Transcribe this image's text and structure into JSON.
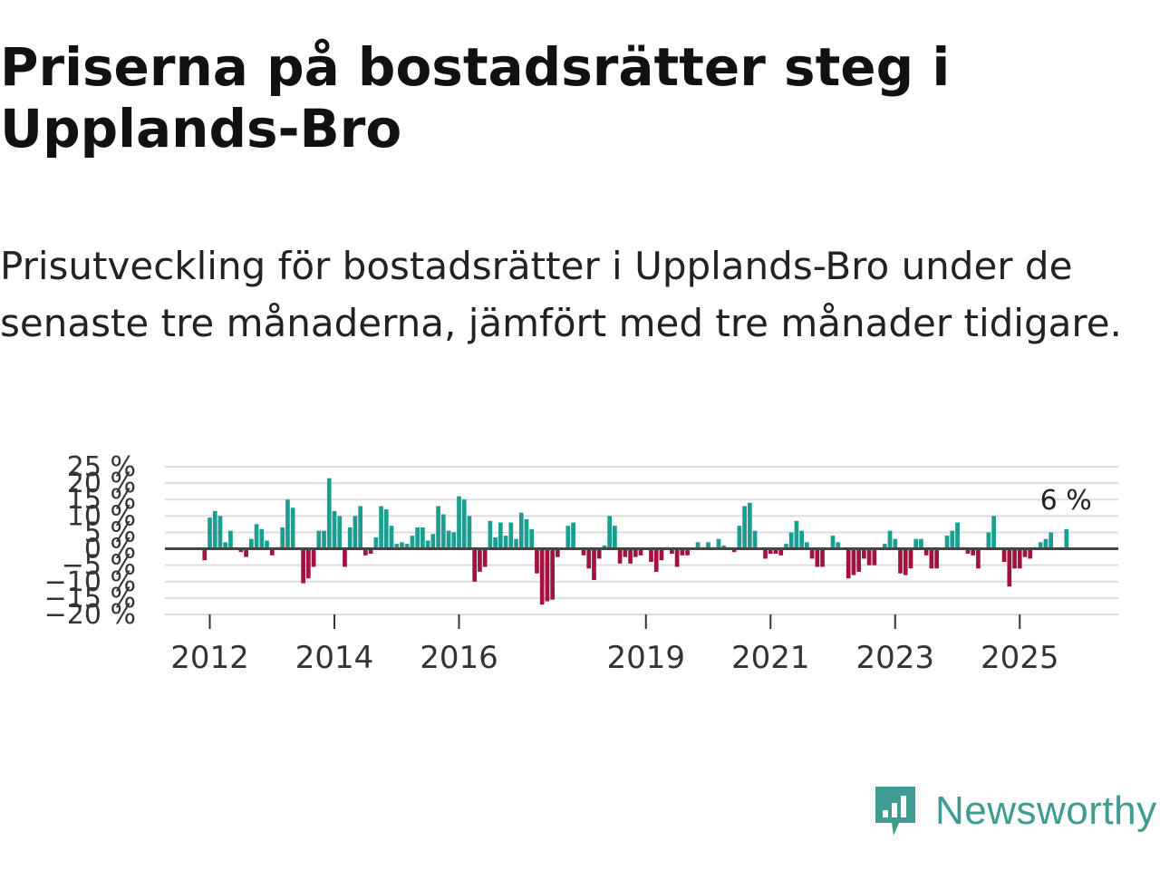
{
  "title": "Priserna på bostadsrätter steg i Upplands-Bro",
  "subtitle": "Prisutveckling för bostadsrätter i Upplands-Bro under de senaste tre månaderna, jämfört med tre månader tidigare.",
  "brand": {
    "name": "Newsworthy",
    "icon": "newsworthy-logo-icon",
    "color": "#3f9c92"
  },
  "colors": {
    "positive": "#1a9e8f",
    "negative": "#a3123f",
    "grid": "#dddddd",
    "zero_line": "#444444"
  },
  "chart_data": {
    "type": "bar",
    "title": "Priserna på bostadsrätter steg i Upplands-Bro",
    "xlabel": "",
    "ylabel": "",
    "unit": "%",
    "x_start": "2011-12",
    "x_end": "2026-03",
    "ylim": [
      -20,
      25
    ],
    "yticks": [
      25,
      20,
      15,
      10,
      5,
      0,
      -5,
      -10,
      -15,
      -20
    ],
    "ytick_labels": [
      "25 %",
      "20 %",
      "15 %",
      "10 %",
      "5 %",
      "0 %",
      "−5 %",
      "−10 %",
      "−15 %",
      "−20 %"
    ],
    "xtick_labels": [
      "2012",
      "2014",
      "2016",
      "2019",
      "2021",
      "2023",
      "2025"
    ],
    "xtick_years": [
      2012,
      2014,
      2016,
      2019,
      2021,
      2023,
      2025
    ],
    "last_label": "6 %",
    "values": [
      -3.5,
      9.5,
      11.5,
      10,
      2,
      5.5,
      0.5,
      -1,
      -2.5,
      3,
      7.5,
      6,
      2.5,
      -2,
      0.5,
      6.5,
      15,
      12.5,
      0,
      -10.5,
      -9,
      -5.5,
      5.5,
      5.5,
      21.5,
      11.5,
      10,
      -5.5,
      6.5,
      10,
      13,
      -2,
      -1.5,
      3.5,
      13,
      12,
      7,
      1.5,
      2,
      1.5,
      4,
      6.5,
      6.5,
      2.5,
      4.5,
      13,
      10.5,
      5.5,
      5,
      16,
      15,
      10,
      -10,
      -7,
      -5.5,
      8.5,
      3.5,
      8,
      4,
      8,
      3,
      11,
      9,
      6,
      -7.5,
      -17,
      -16,
      -15.5,
      -2.5,
      0,
      7,
      8,
      0,
      -2,
      -6,
      -9.5,
      -3,
      1,
      10,
      7,
      -4.5,
      -2.5,
      -4.5,
      -2.5,
      -2,
      0,
      -4,
      -7,
      -3.5,
      0.5,
      -1.5,
      -5.5,
      -2,
      -2,
      0,
      2,
      0.5,
      2,
      0.5,
      3,
      1,
      0.5,
      -1,
      7,
      13,
      14,
      5.5,
      0,
      -3,
      -1.5,
      -1.5,
      -2,
      1.5,
      5,
      8.5,
      5.5,
      2,
      -3,
      -5.5,
      -5.5,
      0,
      4,
      2,
      0,
      -9,
      -8,
      -7,
      -3,
      -5,
      -5,
      0,
      1.5,
      5.5,
      3,
      -7.5,
      -8,
      -6,
      3,
      3,
      -2,
      -6,
      -6,
      0,
      4,
      5.5,
      8,
      0.5,
      -1.5,
      -2,
      -6,
      0,
      5,
      10,
      0,
      -4,
      -11.5,
      -6,
      -6,
      -2.5,
      -3,
      0.5,
      2,
      3,
      5,
      0,
      0.5,
      6
    ]
  }
}
